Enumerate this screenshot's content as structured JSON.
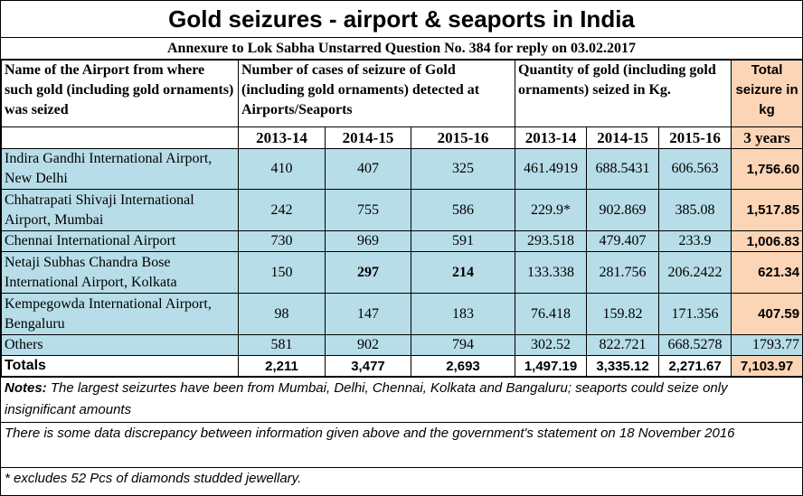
{
  "title": "Gold seizures - airport & seaports in India",
  "annexure": "Annexure to Lok Sabha Unstarred Question No. 384 for reply on 03.02.2017",
  "headers": {
    "airport": "Name of the Airport from where such gold (including gold ornaments) was seized",
    "cases": "Number of cases of seizure of Gold (including gold ornaments) detected at Airports/Seaports",
    "quantity": "Quantity of gold (including gold ornaments) seized in Kg.",
    "total": "Total seizure in kg",
    "years": [
      "2013-14",
      "2014-15",
      "2015-16",
      "2013-14",
      "2014-15",
      "2015-16",
      "3 years"
    ]
  },
  "rows": [
    {
      "name": "Indira Gandhi International Airport, New Delhi",
      "c1": "410",
      "c2": "407",
      "c3": "325",
      "q1": "461.4919",
      "q2": "688.5431",
      "q3": "606.563",
      "total": "1,756.60"
    },
    {
      "name": "Chhatrapati Shivaji International Airport, Mumbai",
      "c1": "242",
      "c2": "755",
      "c3": "586",
      "q1": "229.9*",
      "q2": "902.869",
      "q3": "385.08",
      "total": "1,517.85"
    },
    {
      "name": "Chennai International Airport",
      "c1": "730",
      "c2": "969",
      "c3": "591",
      "q1": "293.518",
      "q2": "479.407",
      "q3": "233.9",
      "total": "1,006.83"
    },
    {
      "name": "Netaji Subhas Chandra Bose International Airport, Kolkata",
      "c1": "150",
      "c2": "297",
      "c3": "214",
      "q1": "133.338",
      "q2": "281.756",
      "q3": "206.2422",
      "total": "621.34"
    },
    {
      "name": "Kempegowda International Airport, Bengaluru",
      "c1": "98",
      "c2": "147",
      "c3": "183",
      "q1": "76.418",
      "q2": "159.82",
      "q3": "171.356",
      "total": "407.59"
    },
    {
      "name": "Others",
      "c1": "581",
      "c2": "902",
      "c3": "794",
      "q1": "302.52",
      "q2": "822.721",
      "q3": "668.5278",
      "total": "1793.77"
    }
  ],
  "totals": {
    "name": "Totals",
    "c1": "2,211",
    "c2": "3,477",
    "c3": "2,693",
    "q1": "1,497.19",
    "q2": "3,335.12",
    "q3": "2,271.67",
    "total": "7,103.97"
  },
  "notes": {
    "label": "Notes:",
    "text": " The largest seizurtes have been from Mumbai, Delhi, Chennai, Kolkata and Bangaluru; seaports could seize only insignificant amounts",
    "discrepancy": "There is some data discrepancy between information given above and the government's statement on 18 November 2016",
    "footnote": "* excludes 52 Pcs of diamonds studded jewellary."
  }
}
